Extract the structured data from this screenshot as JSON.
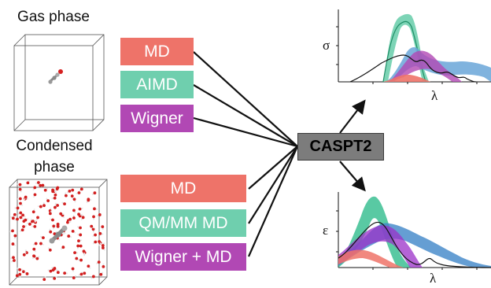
{
  "gas_phase_label": "Gas phase",
  "condensed_label_line1": "Condensed",
  "condensed_label_line2": "phase",
  "gas_methods": [
    {
      "label": "MD",
      "color": "#ee7369"
    },
    {
      "label": "AIMD",
      "color": "#6fcfae"
    },
    {
      "label": "Wigner",
      "color": "#b148b4"
    }
  ],
  "condensed_methods": [
    {
      "label": "MD",
      "color": "#ee7369"
    },
    {
      "label": "QM/MM MD",
      "color": "#6fcfae"
    },
    {
      "label": "Wigner + MD",
      "color": "#b148b4"
    }
  ],
  "center_method": "CASPT2",
  "top_plot": {
    "ylabel": "σ",
    "xlabel": "λ"
  },
  "bottom_plot": {
    "ylabel": "ε",
    "xlabel": "λ"
  },
  "colors": {
    "md": "#ee7369",
    "aimd": "#3cbf93",
    "wigner": "#9b30c8",
    "wigner_md": "#3f86c8",
    "reference": "#111111"
  }
}
